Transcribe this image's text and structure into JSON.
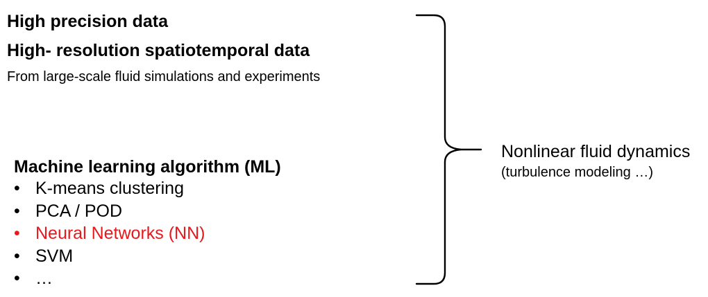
{
  "inputs": {
    "line1": "High precision data",
    "line2": "High- resolution spatiotemporal data",
    "line3": "From large-scale fluid simulations and experiments"
  },
  "ml": {
    "heading": "Machine learning algorithm (ML)",
    "bullet": "•",
    "items": [
      {
        "label": "K-means clustering",
        "color": "#000000"
      },
      {
        "label": "PCA / POD",
        "color": "#000000"
      },
      {
        "label": "Neural Networks (NN)",
        "color": "#e8191c"
      },
      {
        "label": "SVM",
        "color": "#000000"
      },
      {
        "label": "…",
        "color": "#000000"
      }
    ]
  },
  "outcome": {
    "title": "Nonlinear fluid dynamics",
    "note": "(turbulence modeling …)"
  },
  "colors": {
    "text": "#000000",
    "highlight": "#e8191c",
    "brace": "#000000"
  }
}
